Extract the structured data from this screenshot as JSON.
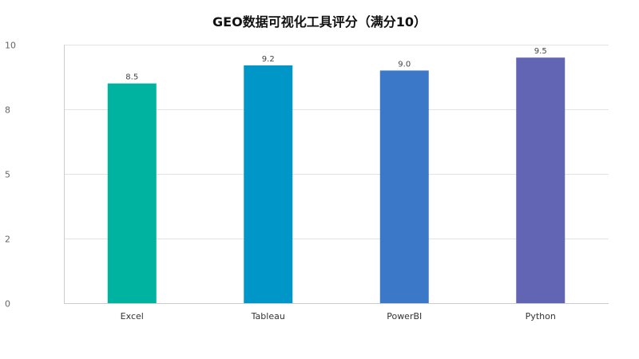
{
  "chart_data": {
    "type": "bar",
    "title": "GEO数据可视化工具评分（满分10）",
    "categories": [
      "Excel",
      "Tableau",
      "PowerBI",
      "Python"
    ],
    "values": [
      8.5,
      9.2,
      9.0,
      9.5
    ],
    "value_labels": [
      "8.5",
      "9.2",
      "9.0",
      "9.5"
    ],
    "colors": [
      "#00B3A0",
      "#0096C8",
      "#3B78C8",
      "#6264B4"
    ],
    "ylim": [
      0,
      10
    ],
    "yticks": [
      0,
      2.5,
      5,
      7.5,
      10
    ],
    "ytick_labels": [
      "0",
      "2",
      "5",
      "8",
      "10"
    ],
    "xlabel": "",
    "ylabel": "",
    "grid": true,
    "legend": "none"
  }
}
